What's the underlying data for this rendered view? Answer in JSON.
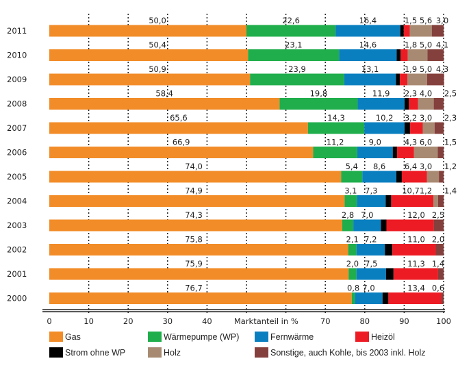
{
  "chart_data": {
    "type": "bar",
    "orientation": "horizontal",
    "stacked": true,
    "xlabel": "Marktanteil in %",
    "xlim": [
      0,
      100
    ],
    "xticks": [
      "0",
      "10",
      "20",
      "30",
      "40",
      "70",
      "80",
      "90",
      "100"
    ],
    "grid": true,
    "legend_position": "bottom",
    "categories": [
      "2011",
      "2010",
      "2009",
      "2008",
      "2007",
      "2006",
      "2005",
      "2004",
      "2003",
      "2002",
      "2001",
      "2000"
    ],
    "series": [
      {
        "name": "Gas",
        "color": "#f28c28",
        "values": [
          50.0,
          50.4,
          50.9,
          58.4,
          65.6,
          66.9,
          74.0,
          74.9,
          74.3,
          75.8,
          75.9,
          76.7
        ],
        "labels": [
          "50,0",
          "50,4",
          "50,9",
          "58,4",
          "65,6",
          "66,9",
          "74,0",
          "74,9",
          "74,3",
          "75,8",
          "75,9",
          "76,7"
        ]
      },
      {
        "name": "Wärmepumpe (WP)",
        "color": "#1fae4b",
        "values": [
          22.6,
          23.1,
          23.9,
          19.8,
          14.3,
          11.2,
          5.4,
          3.1,
          2.8,
          2.1,
          2.0,
          0.8
        ],
        "labels": [
          "22,6",
          "23,1",
          "23,9",
          "19,8",
          "14,3",
          "11,2",
          "5,4",
          "3,1",
          "2,8",
          "2,1",
          "2,0",
          "0,8"
        ]
      },
      {
        "name": "Fernwärme",
        "color": "#0a7fc0",
        "values": [
          16.4,
          14.6,
          13.1,
          11.9,
          10.2,
          9.0,
          8.6,
          7.3,
          7.0,
          7.2,
          7.5,
          7.0
        ],
        "labels": [
          "16,4",
          "14,6",
          "13,1",
          "11,9",
          "10,2",
          "9,0",
          "8,6",
          "7,3",
          "7,0",
          "7,2",
          "7,5",
          "7,0"
        ]
      },
      {
        "name": "Strom ohne WP",
        "color": "#000000",
        "values": [
          0.9,
          1.0,
          1.0,
          1.1,
          1.4,
          1.1,
          1.4,
          1.4,
          1.4,
          1.9,
          1.9,
          1.5
        ]
      },
      {
        "name": "Heizöl",
        "color": "#ed1c24",
        "values": [
          1.5,
          1.8,
          1.9,
          2.3,
          3.2,
          4.3,
          6.4,
          10.7,
          12.0,
          11.0,
          11.3,
          13.4
        ],
        "labels": [
          "1,5",
          "1,8",
          "1,9",
          "2,3",
          "3,2",
          "4,3",
          "6,4",
          "10,7",
          "12,0",
          "11,0",
          "11,3",
          "13,4"
        ]
      },
      {
        "name": "Holz",
        "color": "#a88a72",
        "values": [
          5.6,
          5.0,
          5.0,
          4.0,
          3.0,
          6.0,
          3.0,
          1.2,
          0,
          0,
          0,
          0
        ],
        "labels": [
          "5,6",
          "5,0",
          "5,0",
          "4,0",
          "3,0",
          "6,0",
          "3,0",
          "1,2",
          "",
          "",
          "",
          ""
        ]
      },
      {
        "name": "Sonstige, auch Kohle, bis 2003 inkl. Holz",
        "color": "#84403c",
        "values": [
          3.0,
          4.1,
          4.3,
          2.5,
          2.3,
          1.5,
          1.2,
          1.4,
          2.5,
          2.0,
          1.4,
          0.6
        ],
        "labels": [
          "3,0",
          "4,1",
          "4,3",
          "2,5",
          "2,3",
          "1,5",
          "1,2",
          "1,4",
          "2,5",
          "2,0",
          "1,4",
          "0,6"
        ]
      }
    ]
  },
  "legend": {
    "gas": "Gas",
    "wp": "Wärmepumpe (WP)",
    "fern": "Fernwärme",
    "heizoel": "Heizöl",
    "strom": "Strom ohne WP",
    "holz": "Holz",
    "sonstige": "Sonstige, auch Kohle, bis 2003 inkl. Holz"
  }
}
